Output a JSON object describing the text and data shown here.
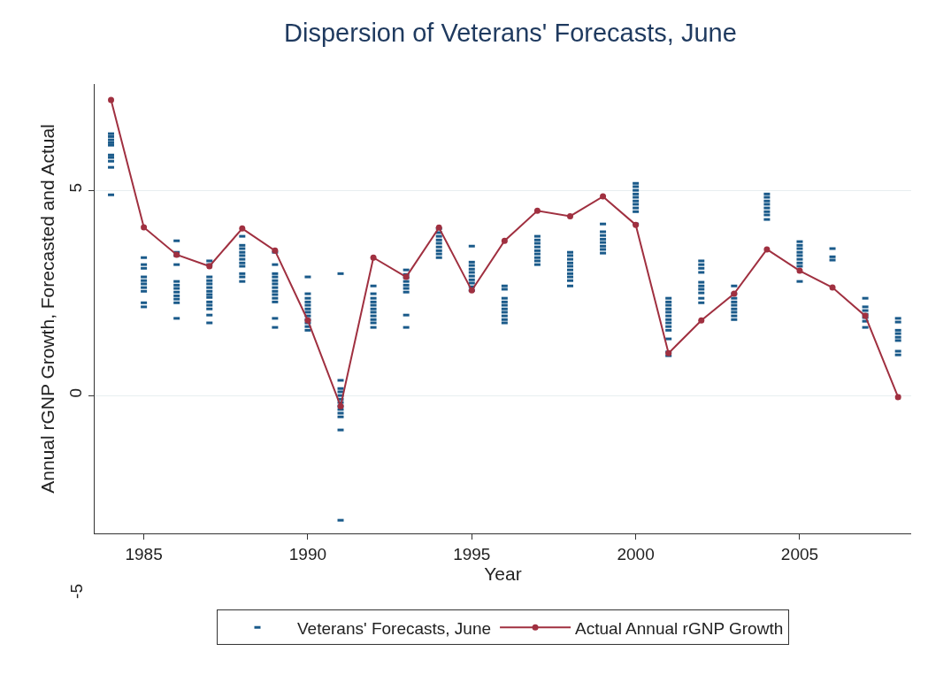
{
  "chart_data": {
    "type": "scatter",
    "title": "Dispersion of Veterans' Forecasts, June",
    "xlabel": "Year",
    "ylabel": "Annual rGNP Growth, Forecasted and Actual",
    "xlim": [
      1983.5,
      2008.4
    ],
    "xticks": [
      1985,
      1990,
      1995,
      2000,
      2005
    ],
    "ylim": [
      -3.36,
      7.59
    ],
    "yticks": [
      0,
      5
    ],
    "grid": "y",
    "legend": "bottom",
    "annotations": [
      "-5"
    ],
    "series": [
      {
        "name": "Veterans' Forecasts, June",
        "color": "#1a5a8a",
        "x": [
          1984,
          1984,
          1984,
          1984,
          1984,
          1984,
          1984,
          1984,
          1984,
          1984,
          1985,
          1985,
          1985,
          1985,
          1985,
          1985,
          1985,
          1985,
          1985,
          1985,
          1986,
          1986,
          1986,
          1986,
          1986,
          1986,
          1986,
          1986,
          1986,
          1986,
          1986,
          1986,
          1987,
          1987,
          1987,
          1987,
          1987,
          1987,
          1987,
          1987,
          1987,
          1987,
          1987,
          1987,
          1987,
          1987,
          1988,
          1988,
          1988,
          1988,
          1988,
          1988,
          1988,
          1988,
          1988,
          1988,
          1988,
          1989,
          1989,
          1989,
          1989,
          1989,
          1989,
          1989,
          1989,
          1989,
          1989,
          1989,
          1989,
          1989,
          1990,
          1990,
          1990,
          1990,
          1990,
          1990,
          1990,
          1990,
          1990,
          1990,
          1990,
          1990,
          1991,
          1991,
          1991,
          1991,
          1991,
          1991,
          1991,
          1991,
          1991,
          1991,
          1991,
          1991,
          1991,
          1992,
          1992,
          1992,
          1992,
          1992,
          1992,
          1992,
          1992,
          1992,
          1992,
          1992,
          1993,
          1993,
          1993,
          1993,
          1993,
          1993,
          1993,
          1993,
          1993,
          1994,
          1994,
          1994,
          1994,
          1994,
          1994,
          1994,
          1994,
          1994,
          1995,
          1995,
          1995,
          1995,
          1995,
          1995,
          1995,
          1995,
          1995,
          1995,
          1996,
          1996,
          1996,
          1996,
          1996,
          1996,
          1996,
          1996,
          1996,
          1996,
          1997,
          1997,
          1997,
          1997,
          1997,
          1997,
          1997,
          1997,
          1997,
          1998,
          1998,
          1998,
          1998,
          1998,
          1998,
          1998,
          1998,
          1998,
          1998,
          1999,
          1999,
          1999,
          1999,
          1999,
          1999,
          1999,
          1999,
          2000,
          2000,
          2000,
          2000,
          2000,
          2000,
          2000,
          2000,
          2000,
          2000,
          2001,
          2001,
          2001,
          2001,
          2001,
          2001,
          2001,
          2001,
          2001,
          2001,
          2001,
          2001,
          2001,
          2002,
          2002,
          2002,
          2002,
          2002,
          2002,
          2002,
          2002,
          2002,
          2002,
          2003,
          2003,
          2003,
          2003,
          2003,
          2003,
          2003,
          2003,
          2003,
          2004,
          2004,
          2004,
          2004,
          2004,
          2004,
          2004,
          2004,
          2005,
          2005,
          2005,
          2005,
          2005,
          2005,
          2005,
          2005,
          2005,
          2006,
          2006,
          2006,
          2007,
          2007,
          2007,
          2007,
          2007,
          2007,
          2007,
          2008,
          2008,
          2008,
          2008,
          2008,
          2008,
          2008,
          2008
        ],
        "values": [
          6.38,
          6.31,
          6.23,
          6.16,
          6.1,
          5.86,
          5.8,
          5.71,
          5.56,
          4.89,
          3.36,
          3.19,
          3.1,
          2.89,
          2.8,
          2.72,
          2.63,
          2.54,
          2.26,
          2.16,
          3.77,
          3.49,
          3.41,
          3.19,
          2.78,
          2.69,
          2.61,
          2.52,
          2.43,
          2.35,
          2.26,
          1.88,
          3.28,
          3.19,
          2.89,
          2.8,
          2.72,
          2.63,
          2.54,
          2.46,
          2.39,
          2.28,
          2.2,
          2.11,
          1.96,
          1.77,
          3.88,
          3.66,
          3.58,
          3.49,
          3.41,
          3.32,
          3.23,
          3.15,
          2.97,
          2.89,
          2.78,
          3.49,
          3.19,
          2.97,
          2.89,
          2.8,
          2.72,
          2.63,
          2.54,
          2.46,
          2.37,
          2.28,
          1.88,
          1.66,
          2.89,
          2.48,
          2.37,
          2.28,
          2.2,
          2.11,
          2.03,
          1.94,
          1.85,
          1.77,
          1.68,
          1.59,
          2.97,
          0.37,
          0.17,
          0.09,
          0.0,
          -0.09,
          -0.17,
          -0.26,
          -0.34,
          -0.43,
          -0.52,
          -0.84,
          -3.04,
          2.67,
          2.48,
          2.37,
          2.28,
          2.2,
          2.11,
          2.03,
          1.94,
          1.85,
          1.77,
          1.66,
          3.06,
          2.95,
          2.87,
          2.78,
          2.69,
          2.61,
          2.52,
          1.96,
          1.66,
          4.07,
          3.97,
          3.88,
          3.79,
          3.71,
          3.62,
          3.53,
          3.45,
          3.36,
          3.64,
          3.25,
          3.17,
          3.08,
          3.0,
          2.91,
          2.82,
          2.74,
          2.65,
          2.56,
          2.67,
          2.59,
          2.37,
          2.28,
          2.2,
          2.11,
          2.03,
          1.94,
          1.85,
          1.77,
          3.88,
          3.79,
          3.71,
          3.62,
          3.53,
          3.45,
          3.36,
          3.28,
          3.19,
          3.49,
          3.41,
          3.32,
          3.23,
          3.15,
          3.06,
          2.97,
          2.89,
          2.8,
          2.67,
          4.18,
          3.99,
          3.9,
          3.81,
          3.73,
          3.64,
          3.56,
          3.47,
          5.17,
          5.09,
          5.0,
          4.91,
          4.83,
          4.74,
          4.66,
          4.57,
          4.48,
          4.18,
          2.37,
          2.28,
          2.2,
          2.11,
          2.03,
          1.94,
          1.85,
          1.77,
          1.68,
          1.59,
          1.38,
          1.06,
          0.97,
          3.28,
          3.19,
          3.1,
          3.0,
          2.76,
          2.67,
          2.59,
          2.5,
          2.37,
          2.26,
          2.67,
          2.48,
          2.37,
          2.28,
          2.2,
          2.11,
          2.03,
          1.94,
          1.85,
          4.91,
          4.83,
          4.74,
          4.66,
          4.57,
          4.48,
          4.4,
          4.29,
          3.75,
          3.66,
          3.58,
          3.49,
          3.41,
          3.32,
          3.23,
          3.15,
          2.78,
          3.58,
          3.38,
          3.3,
          2.37,
          2.16,
          2.07,
          1.98,
          1.9,
          1.81,
          1.66,
          1.88,
          1.79,
          1.59,
          1.51,
          1.42,
          1.34,
          1.08,
          0.99
        ]
      },
      {
        "name": "Actual Annual rGNP Growth",
        "type": "line",
        "marker": "circle",
        "color": "#a03040",
        "x": [
          1984,
          1985,
          1986,
          1987,
          1988,
          1989,
          1990,
          1991,
          1992,
          1993,
          1994,
          1995,
          1996,
          1997,
          1998,
          1999,
          2000,
          2001,
          2002,
          2003,
          2004,
          2005,
          2006,
          2007,
          2008
        ],
        "values": [
          7.2,
          4.1,
          3.43,
          3.15,
          4.07,
          3.53,
          1.83,
          -0.26,
          3.36,
          2.89,
          4.09,
          2.56,
          3.77,
          4.5,
          4.37,
          4.85,
          4.16,
          1.03,
          1.83,
          2.48,
          3.56,
          3.04,
          2.63,
          1.94,
          -0.04
        ]
      }
    ]
  }
}
